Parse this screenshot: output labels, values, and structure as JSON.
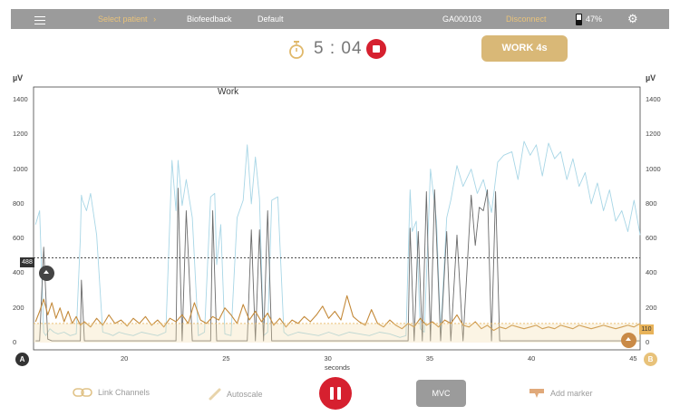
{
  "topbar": {
    "select_patient": "Select patient",
    "mode": "Biofeedback",
    "protocol": "Default",
    "device_id": "GA000103",
    "disconnect": "Disconnect",
    "battery": "47%"
  },
  "session": {
    "timer": "5 : 04",
    "phase_button": "WORK 4s",
    "phase_label": "Work"
  },
  "chart_data": {
    "type": "line",
    "ylabel_left": "µV",
    "ylabel_right": "µV",
    "xlabel": "seconds",
    "ylim": [
      0,
      1400
    ],
    "yticks": [
      0,
      200,
      400,
      600,
      800,
      1000,
      1200,
      1400
    ],
    "xlim": [
      15.5,
      45.3
    ],
    "xticks": [
      20,
      25,
      30,
      35,
      40,
      45
    ],
    "grid": false,
    "thresholds": {
      "A": 488,
      "B": 110
    },
    "series": [
      {
        "channel": "A-raw",
        "color": "#a8d6e6",
        "x": [
          15.6,
          15.8,
          16.0,
          16.1,
          16.3,
          16.5,
          16.7,
          17.0,
          17.3,
          17.6,
          17.8,
          17.85,
          17.9,
          18.1,
          18.3,
          18.6,
          18.9,
          19.2,
          19.4,
          19.7,
          20.0,
          20.4,
          20.8,
          21.2,
          21.6,
          22.0,
          22.3,
          22.5,
          22.6,
          22.8,
          23.0,
          23.3,
          23.6,
          23.9,
          24.2,
          24.4,
          24.5,
          24.7,
          24.9,
          25.2,
          25.5,
          25.8,
          26.0,
          26.2,
          26.4,
          26.6,
          26.8,
          27.0,
          27.2,
          27.5,
          27.8,
          28.0,
          28.5,
          29.0,
          29.5,
          30.0,
          30.5,
          31.0,
          31.5,
          32.0,
          32.5,
          33.0,
          33.5,
          33.8,
          34.0,
          34.1,
          34.3,
          34.5,
          34.7,
          35.0,
          35.3,
          35.5,
          35.8,
          36.0,
          36.3,
          36.6,
          37.0,
          37.3,
          37.6,
          38.0,
          38.3,
          38.6,
          39.0,
          39.3,
          39.6,
          39.9,
          40.2,
          40.5,
          40.8,
          41.1,
          41.4,
          41.7,
          42.0,
          42.3,
          42.6,
          42.9,
          43.2,
          43.5,
          43.8,
          44.1,
          44.4,
          44.7,
          45.0,
          45.3
        ],
        "y": [
          680,
          760,
          60,
          40,
          80,
          60,
          50,
          60,
          40,
          50,
          600,
          850,
          820,
          760,
          860,
          620,
          60,
          50,
          40,
          60,
          50,
          40,
          60,
          50,
          40,
          60,
          1050,
          760,
          1050,
          790,
          940,
          720,
          40,
          60,
          840,
          860,
          450,
          680,
          50,
          40,
          720,
          820,
          1140,
          800,
          1070,
          830,
          40,
          60,
          820,
          840,
          60,
          40,
          60,
          50,
          40,
          60,
          40,
          60,
          50,
          40,
          60,
          50,
          30,
          40,
          880,
          640,
          700,
          80,
          60,
          1000,
          700,
          50,
          720,
          820,
          1020,
          900,
          1000,
          860,
          940,
          750,
          1040,
          1080,
          1100,
          940,
          1160,
          1080,
          1140,
          960,
          1150,
          1060,
          1100,
          940,
          1060,
          900,
          980,
          800,
          920,
          760,
          880,
          700,
          760,
          640,
          820,
          620
        ]
      },
      {
        "channel": "A-envelope",
        "color": "#6b6b6b",
        "x": [
          15.6,
          15.8,
          16.0,
          16.2,
          16.4,
          17.6,
          17.8,
          17.85,
          18.0,
          22.5,
          22.6,
          22.8,
          23.0,
          23.3,
          24.2,
          24.3,
          24.5,
          24.7,
          26.0,
          26.2,
          26.4,
          26.6,
          26.8,
          27.0,
          27.2,
          27.4,
          33.9,
          34.0,
          34.2,
          34.4,
          34.6,
          34.8,
          35.0,
          35.2,
          35.5,
          35.8,
          36.0,
          36.3,
          36.6,
          37.0,
          37.2,
          37.4,
          37.6,
          37.8,
          38.0,
          38.2,
          38.4,
          38.6,
          45.3
        ],
        "y": [
          10,
          10,
          550,
          20,
          10,
          10,
          10,
          360,
          10,
          10,
          890,
          10,
          760,
          10,
          10,
          760,
          10,
          10,
          10,
          650,
          10,
          650,
          10,
          760,
          10,
          10,
          10,
          660,
          10,
          640,
          10,
          870,
          10,
          880,
          10,
          640,
          10,
          620,
          10,
          850,
          560,
          780,
          760,
          880,
          10,
          870,
          10,
          10,
          10
        ]
      },
      {
        "channel": "B-raw",
        "color": "#c48a3a",
        "x": [
          15.6,
          15.8,
          16.0,
          16.2,
          16.4,
          16.6,
          16.8,
          17.0,
          17.2,
          17.4,
          17.6,
          17.8,
          18.0,
          18.3,
          18.6,
          18.9,
          19.2,
          19.5,
          19.8,
          20.1,
          20.4,
          20.7,
          21.0,
          21.3,
          21.6,
          21.9,
          22.2,
          22.5,
          22.8,
          23.1,
          23.4,
          23.7,
          24.0,
          24.3,
          24.6,
          24.9,
          25.2,
          25.5,
          25.8,
          26.1,
          26.4,
          26.7,
          27.0,
          27.3,
          27.6,
          27.9,
          28.2,
          28.5,
          28.8,
          29.1,
          29.4,
          29.7,
          30.0,
          30.3,
          30.6,
          30.9,
          31.2,
          31.5,
          31.8,
          32.1,
          32.4,
          32.7,
          33.0,
          33.3,
          33.6,
          33.9,
          34.2,
          34.5,
          34.8,
          35.1,
          35.4,
          35.7,
          36.0,
          36.3,
          36.6,
          36.9,
          37.2,
          37.5,
          37.8,
          38.1,
          38.4,
          38.7,
          39.0,
          39.3,
          39.6,
          39.9,
          40.2,
          40.5,
          40.8,
          41.1,
          41.4,
          41.7,
          42.0,
          42.3,
          42.6,
          42.9,
          43.2,
          43.5,
          43.8,
          44.1,
          44.4,
          44.7,
          45.0,
          45.3
        ],
        "y": [
          120,
          180,
          250,
          160,
          230,
          140,
          200,
          120,
          180,
          110,
          150,
          100,
          120,
          90,
          140,
          100,
          160,
          110,
          130,
          95,
          140,
          110,
          150,
          100,
          130,
          90,
          140,
          120,
          160,
          110,
          230,
          130,
          110,
          150,
          130,
          200,
          160,
          110,
          220,
          130,
          180,
          120,
          170,
          100,
          140,
          90,
          130,
          110,
          150,
          120,
          160,
          210,
          140,
          180,
          130,
          270,
          150,
          120,
          100,
          190,
          110,
          90,
          130,
          100,
          80,
          110,
          90,
          140,
          100,
          120,
          90,
          130,
          110,
          160,
          100,
          90,
          120,
          80,
          100,
          70,
          90,
          80,
          100,
          90,
          80,
          90,
          100,
          80,
          90,
          80,
          100,
          90,
          80,
          100,
          90,
          80,
          90,
          100,
          90,
          80,
          90,
          100,
          90,
          110
        ]
      }
    ]
  },
  "controls": {
    "link_channels": "Link Channels",
    "autoscale": "Autoscale",
    "mvc": "MVC",
    "add_marker": "Add marker",
    "channel_a": "A",
    "channel_b": "B"
  },
  "colors": {
    "topbar": "#9b9b9b",
    "accent_gold": "#d9b877",
    "record_red": "#d6202f"
  }
}
